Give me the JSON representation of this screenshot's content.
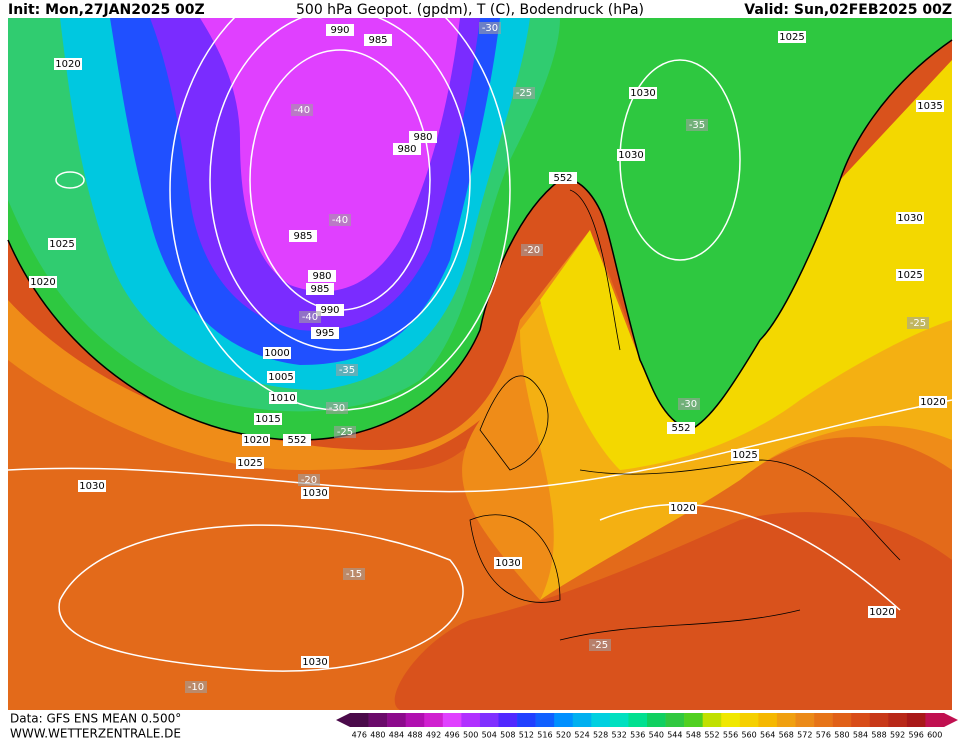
{
  "header": {
    "init": "Init: Mon,27JAN2025 00Z",
    "title": "500 hPa Geopot. (gpdm), T (C), Bodendruck (hPa)",
    "valid": "Valid: Sun,02FEB2025 00Z"
  },
  "footer": {
    "data_source": "Data: GFS ENS MEAN 0.500°",
    "website": "WWW.WETTERZENTRALE.DE"
  },
  "colorbar": {
    "labels": [
      476,
      480,
      484,
      488,
      492,
      496,
      500,
      504,
      508,
      512,
      516,
      520,
      524,
      528,
      532,
      536,
      540,
      544,
      548,
      552,
      556,
      560,
      564,
      568,
      572,
      576,
      580,
      584,
      588,
      592,
      596,
      600
    ],
    "colors": [
      "#4a0a4a",
      "#6a0a6a",
      "#8c0a8c",
      "#b010b0",
      "#d020d0",
      "#e040ff",
      "#b030ff",
      "#8030ff",
      "#5028ff",
      "#2040ff",
      "#1060ff",
      "#0090ff",
      "#00b0f0",
      "#00d0e0",
      "#00e0c0",
      "#00e090",
      "#10d060",
      "#30c840",
      "#50d020",
      "#c0e000",
      "#f0e800",
      "#f5d000",
      "#f5b800",
      "#f0a010",
      "#eb8a18",
      "#e67418",
      "#e06018",
      "#d84c18",
      "#c83818",
      "#b82818",
      "#a81818",
      "#c01050"
    ]
  },
  "isobar_labels": [
    "990",
    "985",
    "1020",
    "1025",
    "1030",
    "1035",
    "980",
    "980",
    "1030",
    "1025",
    "985",
    "980",
    "985",
    "1020",
    "990",
    "995",
    "1030",
    "1025",
    "1000",
    "1005",
    "1010",
    "1015",
    "1020",
    "1025",
    "1030",
    "1030",
    "1020",
    "1025",
    "1020",
    "1030",
    "1020",
    "1030",
    "552",
    "552",
    "552"
  ],
  "temperature_labels": [
    "-30",
    "-25",
    "-40",
    "-35",
    "-40",
    "-20",
    "-40",
    "-35",
    "-30",
    "-25",
    "-25",
    "-30",
    "-20",
    "-15",
    "-25",
    "-10"
  ]
}
